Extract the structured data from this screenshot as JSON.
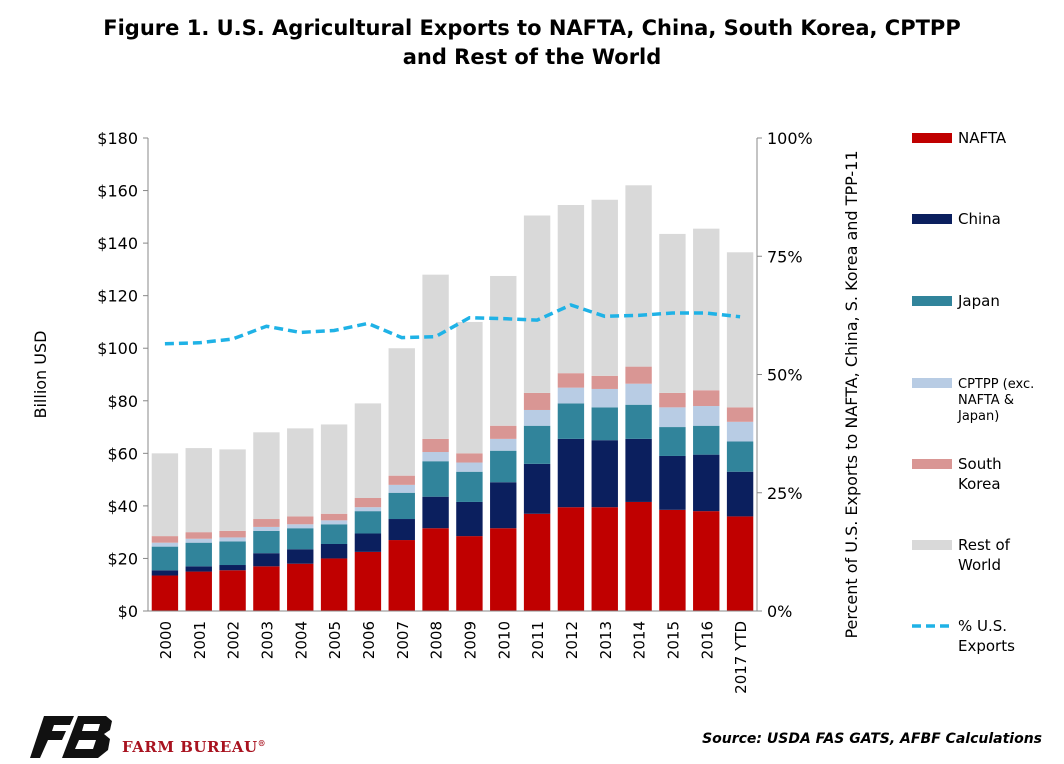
{
  "title_line1": "Figure 1. U.S. Agricultural Exports to NAFTA, China, South Korea, CPTPP",
  "title_line2": "and Rest of the World",
  "source": "Source: USDA FAS GATS, AFBF Calculations",
  "brand": {
    "name": "FARM BUREAU",
    "mark": "®"
  },
  "colors": {
    "nafta": "#c00000",
    "china": "#0b1f5e",
    "japan": "#31849b",
    "cptpp": "#b8cce4",
    "korea": "#d99694",
    "rest": "#d9d9d9",
    "pct": "#1fb2e6"
  },
  "chart_data": {
    "type": "bar",
    "stacked": true,
    "categories": [
      "2000",
      "2001",
      "2002",
      "2003",
      "2004",
      "2005",
      "2006",
      "2007",
      "2008",
      "2009",
      "2010",
      "2011",
      "2012",
      "2013",
      "2014",
      "2015",
      "2016",
      "2017 YTD"
    ],
    "ylabel": "Billion USD",
    "y2label": "Percent of U.S. Exports to NAFTA, China, S. Korea and TPP-11",
    "ylim": [
      0,
      180
    ],
    "yticks": [
      0,
      20,
      40,
      60,
      80,
      100,
      120,
      140,
      160,
      180
    ],
    "ytick_labels": [
      "$0",
      "$20",
      "$40",
      "$60",
      "$80",
      "$100",
      "$120",
      "$140",
      "$160",
      "$180"
    ],
    "y2lim": [
      0,
      100
    ],
    "y2ticks": [
      0,
      25,
      50,
      75,
      100
    ],
    "y2tick_labels": [
      "0%",
      "25%",
      "50%",
      "75%",
      "100%"
    ],
    "legend_position": "right",
    "series": [
      {
        "name": "NAFTA",
        "key": "nafta",
        "values": [
          13.5,
          15.0,
          15.5,
          17.0,
          18.0,
          20.0,
          22.5,
          27.0,
          31.5,
          28.5,
          31.5,
          37.0,
          39.5,
          39.5,
          41.5,
          38.5,
          38.0,
          36.0
        ]
      },
      {
        "name": "China",
        "key": "china",
        "values": [
          2.0,
          2.0,
          2.0,
          5.0,
          5.5,
          5.5,
          7.0,
          8.0,
          12.0,
          13.0,
          17.5,
          19.0,
          26.0,
          25.5,
          24.0,
          20.5,
          21.5,
          17.0
        ]
      },
      {
        "name": "Japan",
        "key": "japan",
        "values": [
          9.0,
          9.0,
          9.0,
          8.5,
          8.0,
          7.5,
          8.5,
          10.0,
          13.5,
          11.5,
          12.0,
          14.5,
          13.5,
          12.5,
          13.0,
          11.0,
          11.0,
          11.5
        ]
      },
      {
        "name": "CPTPP (exc. NAFTA & Japan)",
        "key": "cptpp",
        "values": [
          1.5,
          1.5,
          1.5,
          1.5,
          1.5,
          1.5,
          1.5,
          3.0,
          3.5,
          3.5,
          4.5,
          6.0,
          6.0,
          7.0,
          8.0,
          7.5,
          7.5,
          7.5
        ]
      },
      {
        "name": "South Korea",
        "key": "korea",
        "values": [
          2.5,
          2.5,
          2.5,
          3.0,
          3.0,
          2.5,
          3.5,
          3.5,
          5.0,
          3.5,
          5.0,
          6.5,
          5.5,
          5.0,
          6.5,
          5.5,
          6.0,
          5.5
        ]
      },
      {
        "name": "Rest of World",
        "key": "rest",
        "values": [
          31.5,
          32.0,
          31.0,
          33.0,
          33.5,
          34.0,
          36.0,
          48.5,
          62.5,
          50.0,
          57.0,
          67.5,
          64.0,
          67.0,
          69.0,
          60.5,
          61.5,
          59.0
        ]
      }
    ],
    "line": {
      "name": "% U.S. Exports",
      "key": "pct",
      "axis": "secondary",
      "values": [
        56.5,
        56.7,
        57.5,
        60.2,
        58.9,
        59.3,
        60.8,
        57.8,
        58.0,
        62.0,
        61.8,
        61.5,
        64.7,
        62.3,
        62.5,
        63.0,
        63.0,
        62.2
      ]
    },
    "legend_labels": [
      {
        "key": "nafta",
        "lines": [
          "NAFTA"
        ]
      },
      {
        "key": "china",
        "lines": [
          "China"
        ]
      },
      {
        "key": "japan",
        "lines": [
          "Japan"
        ]
      },
      {
        "key": "cptpp",
        "lines": [
          "CPTPP (exc.",
          "NAFTA &",
          "Japan)"
        ]
      },
      {
        "key": "korea",
        "lines": [
          "South",
          "Korea"
        ]
      },
      {
        "key": "rest",
        "lines": [
          "Rest of",
          "World"
        ]
      },
      {
        "key": "pct",
        "lines": [
          "% U.S.",
          "Exports"
        ]
      }
    ]
  }
}
